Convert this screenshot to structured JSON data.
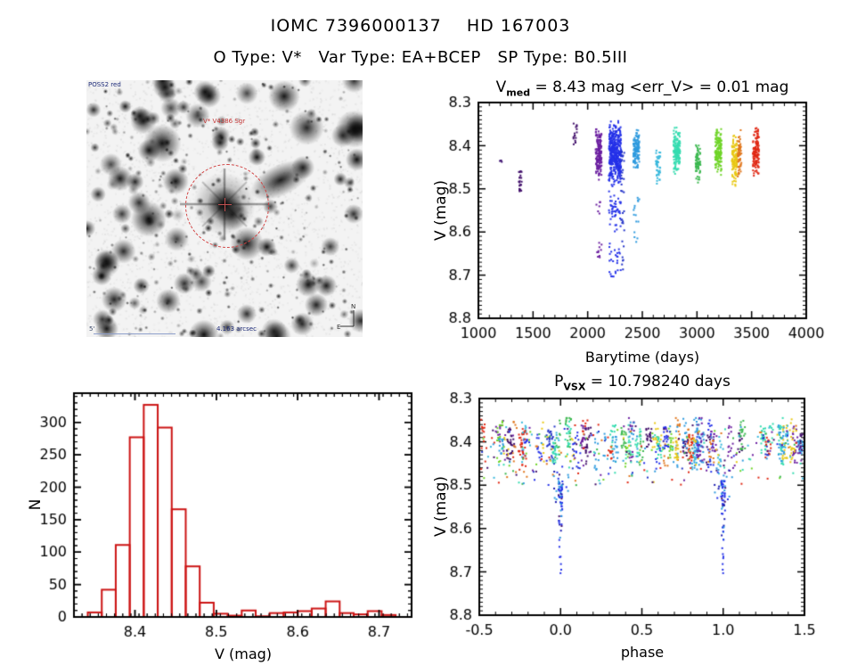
{
  "page": {
    "title": "IOMC 7396000137    HD 167003",
    "subtitle": "O Type: V*   Var Type: EA+BCEP   SP Type: B0.5III"
  },
  "finding_chart": {
    "survey_label": "POSS2 red",
    "star_label": "V* V4386 Sgr",
    "scale_label": "4.163 arcsec",
    "fov_label": "5'",
    "compass": {
      "north": "N",
      "east": "E"
    },
    "marker_color": "#d24242"
  },
  "chart_data": [
    {
      "type": "scatter",
      "name": "lightcurve",
      "title": {
        "base": "V",
        "sub": "med",
        "rest": " = 8.43 mag <err_V> = 0.01 mag"
      },
      "xlabel": "Barytime (days)",
      "ylabel": "V (mag)",
      "xlim": [
        1000,
        4000
      ],
      "ylim": [
        8.3,
        8.8
      ],
      "y_axis_inverted": true,
      "x_ticks": [
        1000,
        1500,
        2000,
        2500,
        3000,
        3500,
        4000
      ],
      "x_tick_labels": [
        "1000",
        "1500",
        "2000",
        "2500",
        "3000",
        "3500",
        "4000"
      ],
      "y_ticks": [
        8.3,
        8.4,
        8.5,
        8.6,
        8.7,
        8.8
      ],
      "y_tick_labels": [
        "8.3",
        "8.4",
        "8.5",
        "8.6",
        "8.7",
        "8.8"
      ],
      "x_minor": 100,
      "y_minor": 0.01,
      "grid": false,
      "legend": "none",
      "clusters": [
        {
          "x": 1205,
          "w": 25,
          "color": "#3a0d6e",
          "segments": [
            [
              8.428,
              8.442,
              3
            ]
          ]
        },
        {
          "x": 1385,
          "w": 30,
          "color": "#42106b",
          "segments": [
            [
              8.458,
              8.512,
              22
            ]
          ]
        },
        {
          "x": 1885,
          "w": 35,
          "color": "#42106b",
          "segments": [
            [
              8.348,
              8.397,
              16
            ]
          ]
        },
        {
          "x": 2100,
          "w": 55,
          "color": "#6b1fa0",
          "segments": [
            [
              8.352,
              8.482,
              150
            ],
            [
              8.53,
              8.558,
              6
            ],
            [
              8.622,
              8.664,
              10
            ]
          ]
        },
        {
          "x": 2250,
          "w": 110,
          "color": "#2431e8",
          "segments": [
            [
              8.338,
              8.5,
              420
            ],
            [
              8.5,
              8.6,
              45
            ],
            [
              8.6,
              8.705,
              26
            ]
          ]
        },
        {
          "x": 2320,
          "w": 30,
          "color": "#2333c8",
          "segments": [
            [
              8.41,
              8.52,
              20
            ],
            [
              8.55,
              8.695,
              15
            ]
          ]
        },
        {
          "x": 2445,
          "w": 55,
          "color": "#2e9ade",
          "segments": [
            [
              8.358,
              8.458,
              130
            ],
            [
              8.52,
              8.625,
              15
            ]
          ]
        },
        {
          "x": 2645,
          "w": 40,
          "color": "#38b8dc",
          "segments": [
            [
              8.405,
              8.492,
              40
            ]
          ]
        },
        {
          "x": 2815,
          "w": 60,
          "color": "#35dcb0",
          "segments": [
            [
              8.352,
              8.468,
              150
            ]
          ]
        },
        {
          "x": 3010,
          "w": 45,
          "color": "#3cb850",
          "segments": [
            [
              8.375,
              8.492,
              70
            ]
          ]
        },
        {
          "x": 3195,
          "w": 60,
          "color": "#6fd428",
          "segments": [
            [
              8.356,
              8.468,
              150
            ]
          ]
        },
        {
          "x": 3345,
          "w": 50,
          "color": "#e8c814",
          "segments": [
            [
              8.37,
              8.5,
              120
            ]
          ]
        },
        {
          "x": 3390,
          "w": 35,
          "color": "#e0761c",
          "segments": [
            [
              8.356,
              8.475,
              60
            ]
          ]
        },
        {
          "x": 3540,
          "w": 55,
          "color": "#e02814",
          "segments": [
            [
              8.356,
              8.478,
              120
            ]
          ]
        }
      ]
    },
    {
      "type": "bar",
      "name": "v_histogram",
      "xlabel": "V (mag)",
      "ylabel": "N",
      "xlim": [
        8.325,
        8.74
      ],
      "ylim": [
        0,
        345
      ],
      "x_ticks": [
        8.4,
        8.5,
        8.6,
        8.7
      ],
      "x_tick_labels": [
        "8.4",
        "8.5",
        "8.6",
        "8.7"
      ],
      "y_ticks": [
        0,
        50,
        100,
        150,
        200,
        250,
        300
      ],
      "y_tick_labels": [
        "0",
        "50",
        "100",
        "150",
        "200",
        "250",
        "300"
      ],
      "x_minor": 0.01,
      "y_minor": 10,
      "grid": false,
      "bin_start": 8.342,
      "bin_width": 0.0172,
      "counts": [
        7,
        42,
        111,
        277,
        327,
        292,
        166,
        78,
        22,
        5,
        2,
        10,
        1,
        6,
        7,
        9,
        13,
        24,
        6,
        4,
        9,
        3
      ],
      "bar_color": "#cc1414"
    },
    {
      "type": "scatter",
      "name": "phase_folded_curve",
      "title": {
        "base": "P",
        "sub": "VSX",
        "rest": " = 10.798240 days"
      },
      "xlabel": "phase",
      "ylabel": "V (mag)",
      "xlim": [
        -0.5,
        1.5
      ],
      "ylim": [
        8.3,
        8.8
      ],
      "y_axis_inverted": true,
      "x_ticks": [
        -0.5,
        0.0,
        0.5,
        1.0,
        1.5
      ],
      "x_tick_labels": [
        "-0.5",
        "0.0",
        "0.5",
        "1.0",
        "1.5"
      ],
      "y_ticks": [
        8.3,
        8.4,
        8.5,
        8.6,
        8.7,
        8.8
      ],
      "y_tick_labels": [
        "8.3",
        "8.4",
        "8.5",
        "8.6",
        "8.7",
        "8.8"
      ],
      "x_minor": 0.1,
      "y_minor": 0.01,
      "grid": false,
      "band": {
        "y_top": 8.35,
        "y_bottom": 8.5,
        "clump_count": 85,
        "single_count": 260,
        "palette": [
          "#42106b",
          "#6b1fa0",
          "#2431e8",
          "#2333c8",
          "#2e9ade",
          "#38b8dc",
          "#35dcb0",
          "#3cb850",
          "#6fd428",
          "#e8c814",
          "#e0761c",
          "#e02814"
        ]
      },
      "eclipses": {
        "phases": [
          0.0,
          1.0
        ],
        "y_from": 8.49,
        "y_to": 8.705,
        "points_each": 55,
        "colors": [
          "#2431e8",
          "#2e9ade",
          "#1a1ab0",
          "#42106b"
        ]
      }
    }
  ]
}
